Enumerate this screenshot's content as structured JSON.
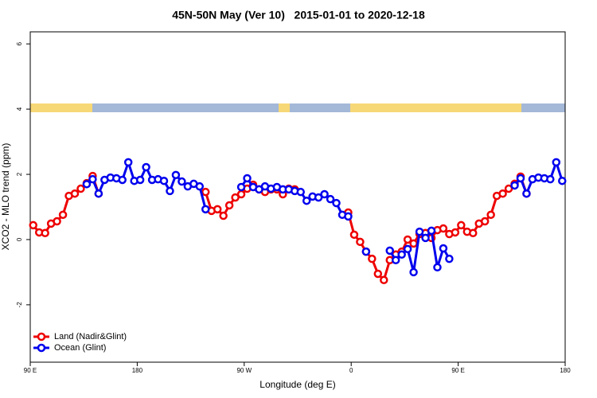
{
  "chart_data": {
    "type": "line",
    "title": "45N-50N May (Ver 10)   2015-01-01 to 2020-12-18",
    "x_label": "Longitude (deg E)",
    "y_label": "XCO2 - MLO trend (ppm)",
    "x": [
      92.5,
      97.5,
      102.5,
      107.5,
      112.5,
      117.5,
      122.5,
      127.5,
      132.5,
      137.5,
      142.5,
      147.5,
      152.5,
      157.5,
      162.5,
      167.5,
      172.5,
      177.5,
      182.5,
      187.5,
      192.5,
      197.5,
      202.5,
      207.5,
      212.5,
      217.5,
      222.5,
      227.5,
      232.5,
      237.5,
      242.5,
      247.5,
      252.5,
      257.5,
      262.5,
      267.5,
      272.5,
      277.5,
      282.5,
      287.5,
      292.5,
      297.5,
      302.5,
      307.5,
      312.5,
      317.5,
      322.5,
      327.5,
      332.5,
      337.5,
      342.5,
      347.5,
      352.5,
      357.5,
      362.5,
      367.5,
      372.5,
      377.5,
      382.5,
      387.5,
      392.5,
      397.5,
      402.5,
      407.5,
      412.5,
      417.5,
      422.5,
      427.5,
      432.5,
      437.5,
      442.5,
      447.5,
      452.5,
      457.5,
      462.5,
      467.5,
      472.5,
      477.5,
      482.5,
      487.5,
      492.5,
      497.5,
      502.5,
      507.5,
      512.5,
      517.5,
      522.5,
      527.5,
      532.5,
      537.5
    ],
    "series": [
      {
        "name": "Land (Nadir&Glint)",
        "color": "#ee0000",
        "values": [
          0.44,
          0.22,
          0.2,
          0.49,
          0.56,
          0.76,
          1.34,
          1.41,
          1.56,
          1.73,
          1.95,
          1.41,
          null,
          null,
          null,
          null,
          null,
          null,
          null,
          null,
          null,
          null,
          null,
          null,
          null,
          null,
          null,
          null,
          null,
          1.46,
          0.88,
          0.93,
          0.73,
          1.05,
          1.29,
          1.39,
          1.56,
          1.68,
          1.54,
          1.46,
          1.54,
          1.54,
          1.39,
          1.56,
          1.54,
          null,
          null,
          null,
          null,
          null,
          null,
          null,
          null,
          0.83,
          0.15,
          -0.07,
          -0.37,
          -0.59,
          -1.05,
          -1.24,
          -0.63,
          -0.46,
          -0.37,
          0.0,
          -0.12,
          0.17,
          0.2,
          0.05,
          0.29,
          0.34,
          0.17,
          0.22,
          0.44,
          0.24,
          0.2,
          0.49,
          0.56,
          0.76,
          1.34,
          1.41,
          1.56,
          1.71,
          1.93,
          1.41,
          null,
          null,
          null,
          null,
          null,
          null
        ]
      },
      {
        "name": "Ocean (Glint)",
        "color": "#0000ee",
        "values": [
          null,
          null,
          null,
          null,
          null,
          null,
          null,
          null,
          null,
          1.7,
          1.85,
          1.41,
          1.83,
          1.9,
          1.88,
          1.83,
          2.37,
          1.8,
          1.83,
          2.22,
          1.83,
          1.85,
          1.8,
          1.49,
          1.98,
          1.78,
          1.63,
          1.71,
          1.63,
          0.93,
          null,
          null,
          null,
          null,
          null,
          1.61,
          1.88,
          1.61,
          1.54,
          1.63,
          1.56,
          1.61,
          1.54,
          1.54,
          1.49,
          1.46,
          1.19,
          1.32,
          1.29,
          1.39,
          1.24,
          1.12,
          0.76,
          0.71,
          null,
          null,
          -0.37,
          null,
          null,
          null,
          -0.34,
          -0.63,
          -0.46,
          -0.29,
          -1.0,
          0.24,
          0.05,
          0.27,
          -0.85,
          -0.27,
          -0.59,
          null,
          null,
          null,
          null,
          null,
          null,
          null,
          null,
          null,
          null,
          1.66,
          1.88,
          1.41,
          1.85,
          1.9,
          1.88,
          1.85,
          2.37,
          1.8
        ]
      }
    ],
    "xlim": [
      90,
      540
    ],
    "xticks": [
      {
        "value": 90,
        "label": "90 E"
      },
      180,
      {
        "value": 270,
        "label": "90 W"
      },
      {
        "value": 360,
        "label": "0"
      },
      {
        "value": 450,
        "label": "90 E"
      },
      {
        "value": 540,
        "label": "180"
      }
    ],
    "ylim": [
      -3.76,
      6.37
    ],
    "yticks": [
      -2,
      0,
      2,
      4,
      6
    ],
    "legend": "bottomleft"
  }
}
